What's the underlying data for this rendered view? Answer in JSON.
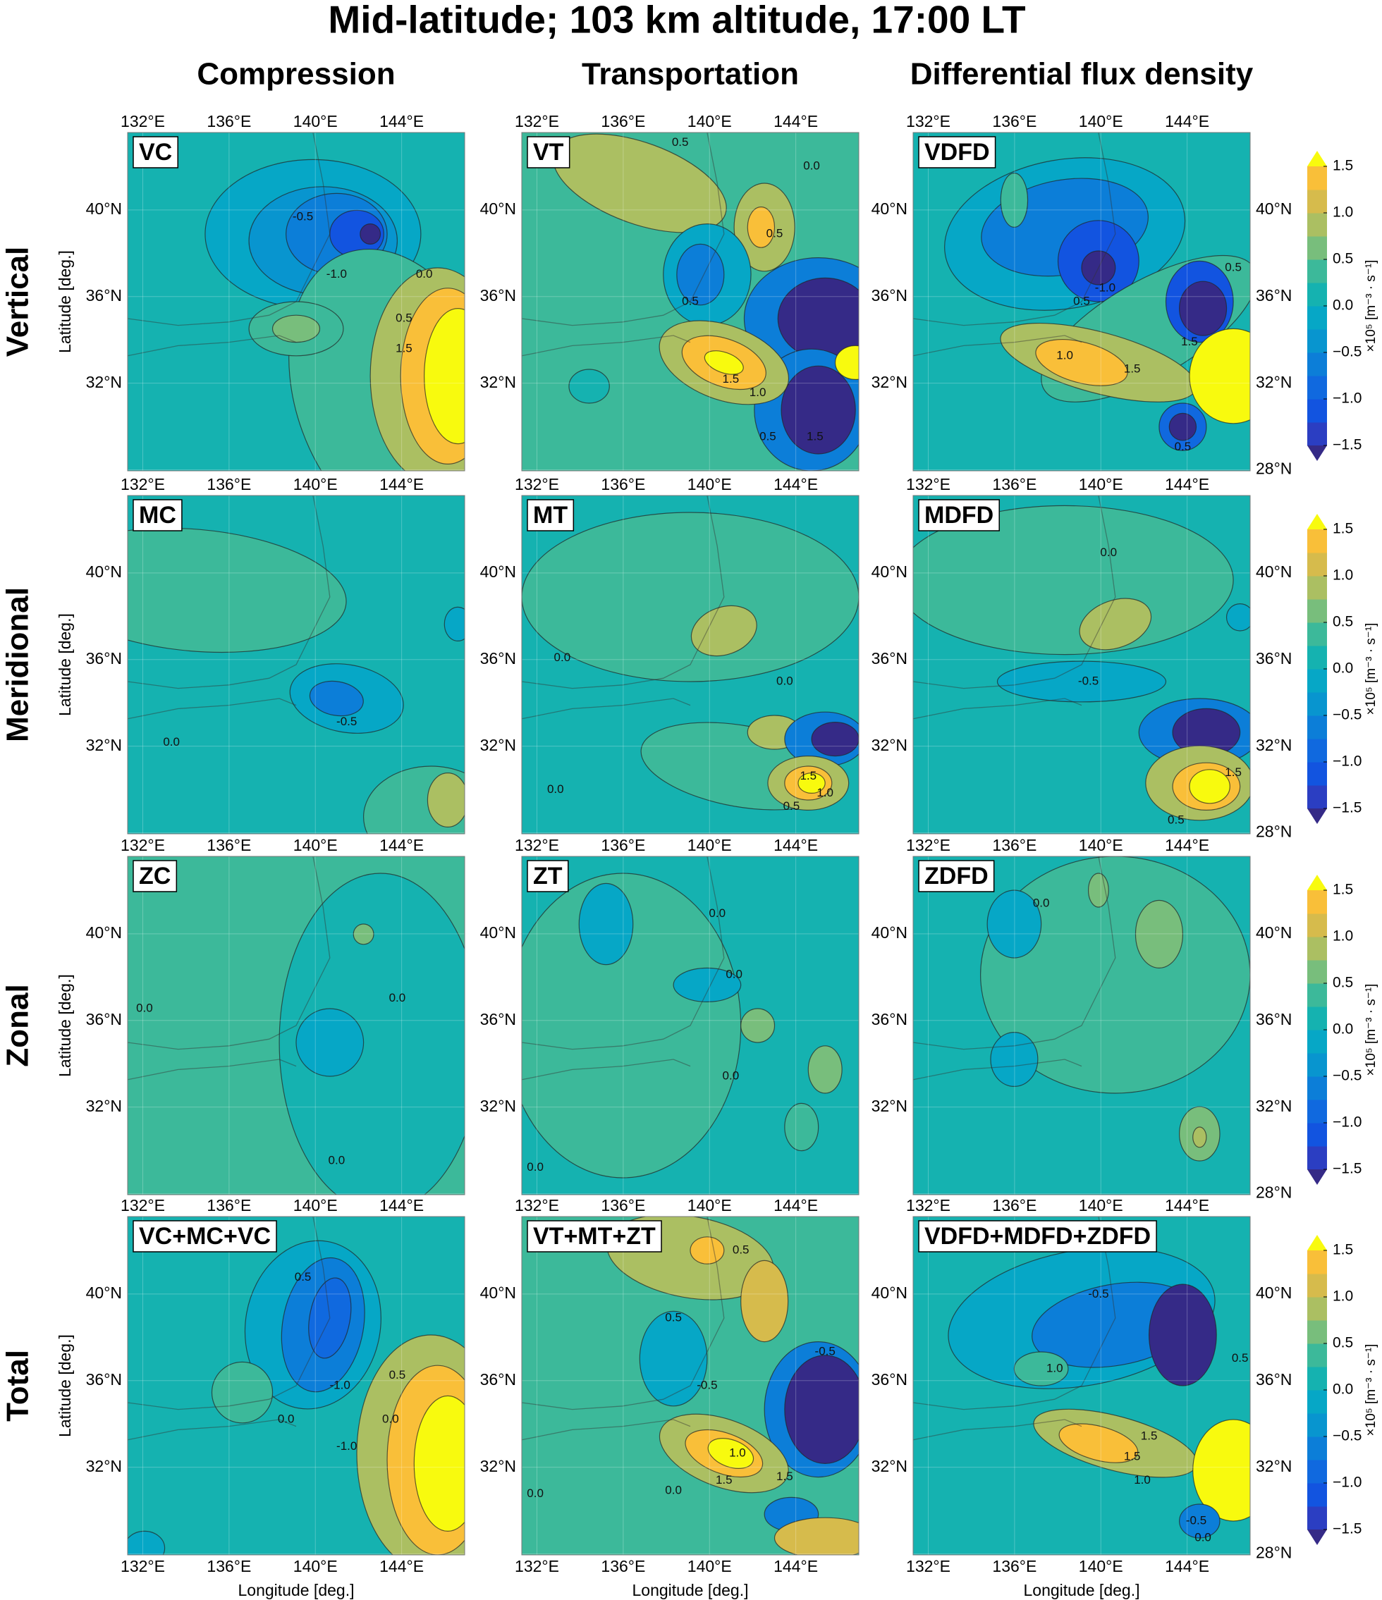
{
  "title": "Mid-latitude; 103 km altitude, 17:00 LT",
  "columns": [
    "Compression",
    "Transportation",
    "Differential flux density"
  ],
  "rows": [
    {
      "title": "Vertical",
      "panels": [
        {
          "label": "VC",
          "contour_labels": [
            "-0.5",
            "-1.0",
            "0.0",
            "0.5",
            "1.5"
          ]
        },
        {
          "label": "VT",
          "contour_labels": [
            "0.5",
            "0.0",
            "0.5",
            "0.5",
            "1.5",
            "1.0",
            "0.5",
            "1.5"
          ]
        },
        {
          "label": "VDFD",
          "contour_labels": [
            "0.5",
            "-1.0",
            "0.5",
            "1.5",
            "1.5",
            "1.0",
            "0.5"
          ]
        }
      ]
    },
    {
      "title": "Meridional",
      "panels": [
        {
          "label": "MC",
          "contour_labels": [
            "-0.5",
            "0.0"
          ]
        },
        {
          "label": "MT",
          "contour_labels": [
            "0.0",
            "0.0",
            "0.0",
            "1.5",
            "1.0",
            "0.5"
          ]
        },
        {
          "label": "MDFD",
          "contour_labels": [
            "0.0",
            "-0.5",
            "1.5",
            "0.5"
          ]
        }
      ]
    },
    {
      "title": "Zonal",
      "panels": [
        {
          "label": "ZC",
          "contour_labels": [
            "0.0",
            "0.0",
            "0.0"
          ]
        },
        {
          "label": "ZT",
          "contour_labels": [
            "0.0",
            "0.0",
            "0.0",
            "0.0"
          ]
        },
        {
          "label": "ZDFD",
          "contour_labels": [
            "0.0"
          ]
        }
      ]
    },
    {
      "title": "Total",
      "panels": [
        {
          "label": "VC+MC+VC",
          "contour_labels": [
            "0.5",
            "-1.0",
            "-1.0",
            "0.0",
            "0.0",
            "0.5"
          ]
        },
        {
          "label": "VT+MT+ZT",
          "contour_labels": [
            "0.5",
            "0.5",
            "-0.5",
            "-0.5",
            "1.0",
            "1.5",
            "1.5",
            "0.0",
            "0.0"
          ]
        },
        {
          "label": "VDFD+MDFD+ZDFD",
          "contour_labels": [
            "-0.5",
            "0.5",
            "1.0",
            "1.5",
            "1.5",
            "1.0",
            "-0.5",
            "0.0"
          ]
        }
      ]
    }
  ],
  "axes": {
    "xticks": [
      "132°E",
      "136°E",
      "140°E",
      "144°E"
    ],
    "yticks": [
      "40°N",
      "36°N",
      "32°N",
      "28°N"
    ],
    "xlabel": "Longitude [deg.]",
    "ylabel": "Latitude [deg.]"
  },
  "colorbar": {
    "ticks": [
      "1.5",
      "1.0",
      "0.5",
      "0.0",
      "−0.5",
      "−1.0",
      "−1.5"
    ],
    "label": "×10⁵ [m⁻³ · s⁻¹]",
    "colors": [
      "#352a87",
      "#2b3ec2",
      "#1254e0",
      "#1069df",
      "#0c7ed8",
      "#0895cf",
      "#06a7c6",
      "#15b2b0",
      "#3cb99a",
      "#78be7c",
      "#abbf62",
      "#d6bb4c",
      "#f9bf39",
      "#f8fa0e"
    ]
  }
}
